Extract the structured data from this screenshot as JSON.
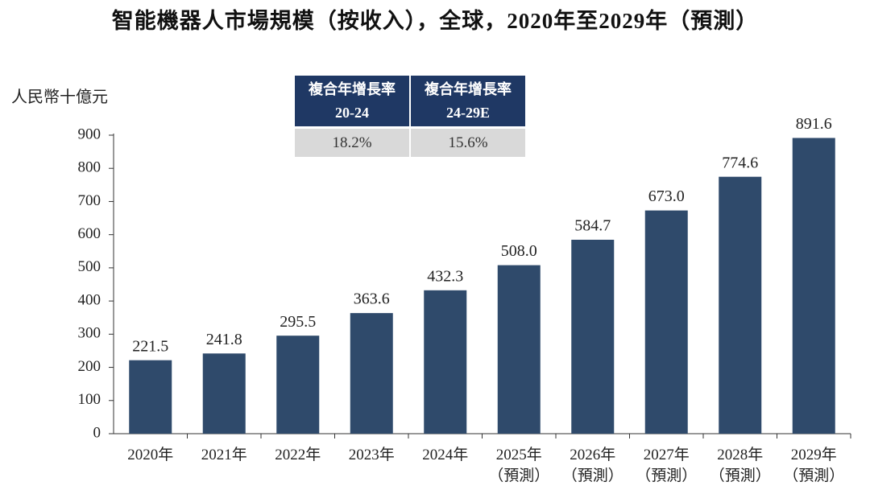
{
  "chart_data": {
    "type": "bar",
    "title": "智能機器人市場規模（按收入），全球，2020年至2029年（預測）",
    "y_axis_label": "人民幣十億元",
    "categories": [
      "2020年",
      "2021年",
      "2022年",
      "2023年",
      "2024年",
      "2025年\n（預測）",
      "2026年\n（預測）",
      "2027年\n（預測）",
      "2028年\n（預測）",
      "2029年\n（預測）"
    ],
    "values": [
      221.5,
      241.8,
      295.5,
      363.6,
      432.3,
      508.0,
      584.7,
      673.0,
      774.6,
      891.6
    ],
    "value_labels": [
      "221.5",
      "241.8",
      "295.5",
      "363.6",
      "432.3",
      "508.0",
      "584.7",
      "673.0",
      "774.6",
      "891.6"
    ],
    "color": "#2f4a6b",
    "ylim": [
      0,
      900
    ],
    "yticks": [
      0,
      100,
      200,
      300,
      400,
      500,
      600,
      700,
      800,
      900
    ],
    "grid": false,
    "cagr_table": {
      "columns": [
        "複合年增長率\n20-24",
        "複合年增長率\n24-29E"
      ],
      "values": [
        "18.2%",
        "15.6%"
      ]
    }
  }
}
